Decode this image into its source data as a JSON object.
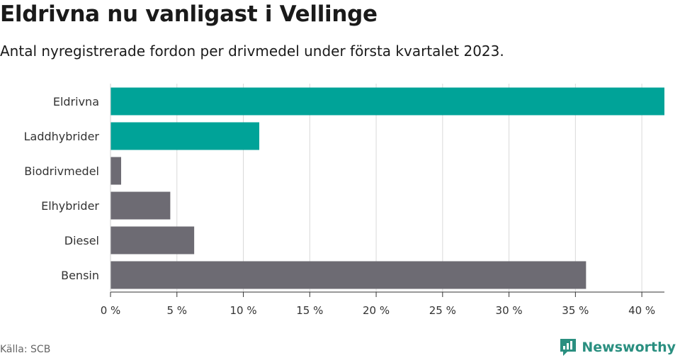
{
  "header": {
    "title": "Eldrivna nu vanligast i Vellinge",
    "subtitle": "Antal nyregistrerade fordon per drivmedel under första kvartalet 2023."
  },
  "footer": {
    "source": "Källa: SCB",
    "brand": "Newsworthy"
  },
  "colors": {
    "highlight": "#00a398",
    "default": "#6d6b73",
    "grid": "#d9d9d9",
    "brand": "#2a8f80"
  },
  "chart_data": {
    "type": "bar",
    "orientation": "horizontal",
    "title": "Eldrivna nu vanligast i Vellinge",
    "subtitle": "Antal nyregistrerade fordon per drivmedel under första kvartalet 2023.",
    "categories": [
      "Eldrivna",
      "Laddhybrider",
      "Biodrivmedel",
      "Elhybrider",
      "Diesel",
      "Bensin"
    ],
    "values": [
      41.7,
      11.2,
      0.8,
      4.5,
      6.3,
      35.8
    ],
    "highlighted": [
      true,
      true,
      false,
      false,
      false,
      false
    ],
    "unit": "%",
    "xlim": [
      0,
      41.7
    ],
    "x_ticks": [
      0,
      5,
      10,
      15,
      20,
      25,
      30,
      35,
      40
    ],
    "x_tick_labels": [
      "0 %",
      "5 %",
      "10 %",
      "15 %",
      "20 %",
      "25 %",
      "30 %",
      "35 %",
      "40 %"
    ],
    "grid": true,
    "legend": "none"
  }
}
